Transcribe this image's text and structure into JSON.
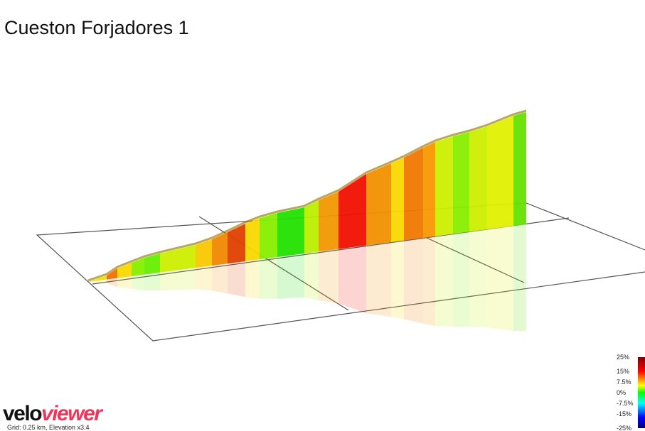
{
  "title": "Cueston Forjadores 1",
  "legend": {
    "labels": [
      "25%",
      "15%",
      "7.5%",
      "0%",
      "-7.5%",
      "-15%",
      "-25%"
    ]
  },
  "logo": {
    "brand_light": "velo",
    "brand_bold": "viewer"
  },
  "caption": "Grid: 0.25 km, Elevation x3.4"
}
